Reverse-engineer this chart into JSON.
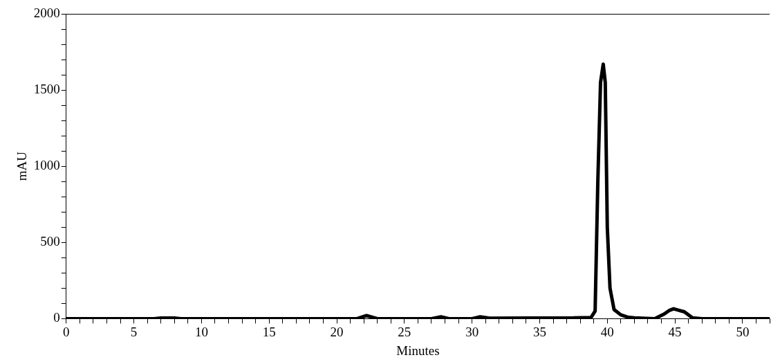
{
  "chart_data": {
    "type": "line",
    "xlabel": "Minutes",
    "ylabel": "mAU",
    "x": [
      0,
      5,
      6.5,
      7,
      8,
      8.5,
      10.5,
      11,
      20.5,
      21.5,
      22.2,
      23,
      27,
      27.7,
      28.3,
      30,
      30.6,
      31.3,
      37.5,
      38.8,
      39.1,
      39.3,
      39.5,
      39.7,
      39.85,
      40.0,
      40.2,
      40.5,
      41,
      41.5,
      42,
      43.5,
      44.2,
      44.6,
      44.9,
      45.3,
      45.7,
      46.3,
      47,
      52
    ],
    "series": [
      {
        "color": "#000000",
        "values": [
          0,
          0,
          0,
          4,
          4,
          0,
          0,
          0,
          0,
          0,
          20,
          0,
          0,
          12,
          0,
          0,
          12,
          3,
          5,
          8,
          50,
          900,
          1550,
          1670,
          1550,
          600,
          200,
          60,
          25,
          10,
          5,
          0,
          30,
          55,
          65,
          55,
          45,
          5,
          0,
          0
        ]
      }
    ],
    "xlim": [
      0,
      52
    ],
    "xticks": [
      0,
      {
        "value": 1,
        "label": null
      },
      {
        "value": 2,
        "label": null
      },
      {
        "value": 3,
        "label": null
      },
      {
        "value": 4,
        "label": null
      },
      5,
      {
        "value": 6,
        "label": null
      },
      {
        "value": 7,
        "label": null
      },
      {
        "value": 8,
        "label": null
      },
      {
        "value": 9,
        "label": null
      },
      10,
      {
        "value": 11,
        "label": null
      },
      {
        "value": 12,
        "label": null
      },
      {
        "value": 13,
        "label": null
      },
      {
        "value": 14,
        "label": null
      },
      15,
      {
        "value": 16,
        "label": null
      },
      {
        "value": 17,
        "label": null
      },
      {
        "value": 18,
        "label": null
      },
      {
        "value": 19,
        "label": null
      },
      20,
      {
        "value": 21,
        "label": null
      },
      {
        "value": 22,
        "label": null
      },
      {
        "value": 23,
        "label": null
      },
      {
        "value": 24,
        "label": null
      },
      25,
      {
        "value": 26,
        "label": null
      },
      {
        "value": 27,
        "label": null
      },
      {
        "value": 28,
        "label": null
      },
      {
        "value": 29,
        "label": null
      },
      30,
      {
        "value": 31,
        "label": null
      },
      {
        "value": 32,
        "label": null
      },
      {
        "value": 33,
        "label": null
      },
      {
        "value": 34,
        "label": null
      },
      35,
      {
        "value": 36,
        "label": null
      },
      {
        "value": 37,
        "label": null
      },
      {
        "value": 38,
        "label": null
      },
      {
        "value": 39,
        "label": null
      },
      40,
      {
        "value": 41,
        "label": null
      },
      {
        "value": 42,
        "label": null
      },
      {
        "value": 43,
        "label": null
      },
      {
        "value": 44,
        "label": null
      },
      45,
      {
        "value": 46,
        "label": null
      },
      {
        "value": 47,
        "label": null
      },
      {
        "value": 48,
        "label": null
      },
      {
        "value": 49,
        "label": null
      },
      50,
      {
        "value": 51,
        "label": null
      },
      {
        "value": 52,
        "label": null
      }
    ],
    "ylim": [
      0,
      2000
    ],
    "yticks": [
      0,
      {
        "value": 100,
        "label": null
      },
      {
        "value": 200,
        "label": null
      },
      {
        "value": 300,
        "label": null
      },
      {
        "value": 400,
        "label": null
      },
      500,
      {
        "value": 600,
        "label": null
      },
      {
        "value": 700,
        "label": null
      },
      {
        "value": 800,
        "label": null
      },
      {
        "value": 900,
        "label": null
      },
      1000,
      {
        "value": 1100,
        "label": null
      },
      {
        "value": 1200,
        "label": null
      },
      {
        "value": 1300,
        "label": null
      },
      {
        "value": 1400,
        "label": null
      },
      1500,
      {
        "value": 1600,
        "label": null
      },
      {
        "value": 1700,
        "label": null
      },
      {
        "value": 1800,
        "label": null
      },
      {
        "value": 1900,
        "label": null
      },
      2000
    ],
    "grid": false,
    "legend": false,
    "marker": "none",
    "line_style": "solid"
  }
}
